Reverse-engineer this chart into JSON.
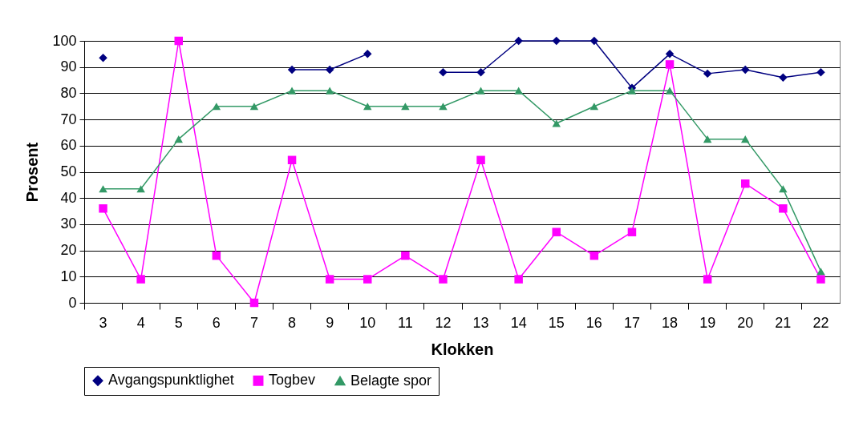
{
  "chart_data": {
    "type": "line",
    "xlabel": "Klokken",
    "ylabel": "Prosent",
    "categories": [
      "3",
      "4",
      "5",
      "6",
      "7",
      "8",
      "9",
      "10",
      "11",
      "12",
      "13",
      "14",
      "15",
      "16",
      "17",
      "18",
      "19",
      "20",
      "21",
      "22"
    ],
    "series": [
      {
        "name": "Avgangspunktlighet",
        "color": "#000080",
        "marker": "diamond",
        "values": [
          93.5,
          null,
          null,
          null,
          null,
          89,
          89,
          95,
          null,
          88,
          88,
          100,
          100,
          100,
          82,
          95,
          87.5,
          89,
          86,
          88
        ]
      },
      {
        "name": "Togbev",
        "color": "#ff00ff",
        "marker": "square",
        "values": [
          36,
          9,
          100,
          18,
          0,
          54.5,
          9,
          9,
          18,
          9,
          54.5,
          9,
          27,
          18,
          27,
          91,
          9,
          45.5,
          36,
          9
        ]
      },
      {
        "name": "Belagte spor",
        "color": "#339966",
        "marker": "triangle",
        "values": [
          43.5,
          43.5,
          62.5,
          75,
          75,
          81,
          81,
          75,
          75,
          75,
          81,
          81,
          68.5,
          75,
          81,
          81,
          62.5,
          62.5,
          43.5,
          12
        ]
      }
    ],
    "ylim": [
      0,
      100
    ],
    "yticks": [
      0,
      10,
      20,
      30,
      40,
      50,
      60,
      70,
      80,
      90,
      100
    ],
    "grid": "y",
    "legend": "bottom",
    "line_style": "solid"
  }
}
